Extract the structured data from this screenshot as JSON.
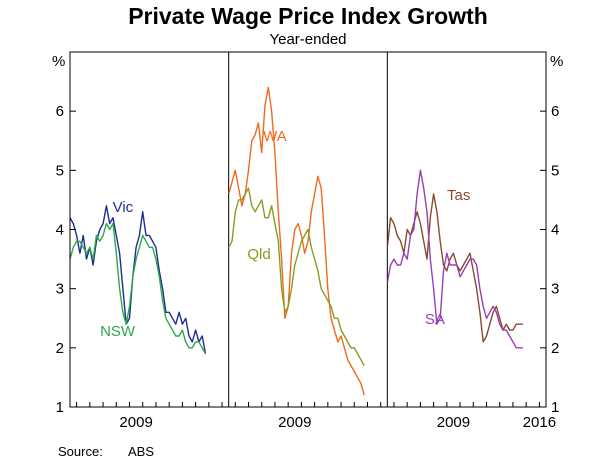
{
  "chart_data": {
    "type": "line",
    "title": "Private Wage Price Index Growth",
    "subtitle": "Year-ended",
    "ylabel_left": "%",
    "ylabel_right": "%",
    "ylim": [
      1,
      7
    ],
    "yticks": [
      1,
      2,
      3,
      4,
      5,
      6
    ],
    "xlim": [
      2004.5,
      2016.5
    ],
    "xticks": [
      {
        "value": 2009.5,
        "label": "2009"
      },
      {
        "value": 2016,
        "label": "2016"
      }
    ],
    "source_label": "Source:",
    "source_value": "ABS",
    "panels": [
      {
        "name": "panel-1",
        "series": [
          {
            "name": "Vic",
            "color": "#1f2d8f",
            "x_start": 2004.5,
            "step": 0.25,
            "values": [
              4.2,
              4.1,
              3.9,
              3.6,
              3.9,
              3.5,
              3.7,
              3.4,
              3.8,
              4.0,
              4.1,
              4.4,
              4.1,
              4.2,
              3.9,
              3.6,
              3.0,
              2.4,
              2.5,
              3.2,
              3.7,
              3.9,
              4.3,
              3.9,
              3.9,
              3.8,
              3.7,
              3.3,
              3.0,
              2.6,
              2.6,
              2.5,
              2.4,
              2.6,
              2.4,
              2.5,
              2.2,
              2.1,
              2.3,
              2.1,
              2.2,
              1.9
            ]
          },
          {
            "name": "NSW",
            "color": "#2fa84a",
            "x_start": 2004.5,
            "step": 0.25,
            "values": [
              3.5,
              3.7,
              3.8,
              3.8,
              3.7,
              3.6,
              3.7,
              3.5,
              3.9,
              3.8,
              3.9,
              4.1,
              4.0,
              4.1,
              3.6,
              3.0,
              2.6,
              2.4,
              2.7,
              3.2,
              3.5,
              3.7,
              3.9,
              3.8,
              3.7,
              3.7,
              3.5,
              3.2,
              2.8,
              2.5,
              2.4,
              2.3,
              2.2,
              2.2,
              2.3,
              2.1,
              2.0,
              2.0,
              2.1,
              2.1,
              2.0,
              1.9
            ]
          }
        ],
        "labels": [
          {
            "text": "Vic",
            "series": "Vic",
            "x": 2008.5,
            "y": 4.3
          },
          {
            "text": "NSW",
            "series": "NSW",
            "x": 2008.1,
            "y": 2.2
          }
        ]
      },
      {
        "name": "panel-2",
        "series": [
          {
            "name": "WA",
            "color": "#f06a1d",
            "x_start": 2004.5,
            "step": 0.25,
            "values": [
              4.6,
              4.8,
              5.0,
              4.7,
              4.4,
              4.6,
              5.0,
              5.5,
              5.6,
              5.8,
              5.3,
              6.1,
              6.4,
              6.0,
              5.3,
              4.3,
              3.5,
              2.5,
              2.7,
              3.6,
              4.0,
              4.1,
              3.9,
              3.6,
              3.8,
              4.3,
              4.6,
              4.9,
              4.7,
              3.9,
              3.0,
              2.5,
              2.3,
              2.1,
              2.2,
              2.0,
              1.8,
              1.7,
              1.6,
              1.5,
              1.4,
              1.2
            ]
          },
          {
            "name": "Qld",
            "color": "#8c9b1f",
            "x_start": 2004.5,
            "step": 0.25,
            "values": [
              3.7,
              3.8,
              4.3,
              4.5,
              4.5,
              4.6,
              4.7,
              4.4,
              4.3,
              4.4,
              4.5,
              4.2,
              4.2,
              4.4,
              4.1,
              3.8,
              3.0,
              2.6,
              2.7,
              3.0,
              3.4,
              3.6,
              3.8,
              3.9,
              4.0,
              3.7,
              3.5,
              3.3,
              3.0,
              2.9,
              2.8,
              2.7,
              2.5,
              2.5,
              2.3,
              2.2,
              2.1,
              2.0,
              2.0,
              1.9,
              1.8,
              1.7
            ]
          }
        ],
        "labels": [
          {
            "text": "WA",
            "series": "WA",
            "x": 2008.0,
            "y": 5.5
          },
          {
            "text": "Qld",
            "series": "Qld",
            "x": 2006.8,
            "y": 3.5
          }
        ]
      },
      {
        "name": "panel-3",
        "series": [
          {
            "name": "Tas",
            "color": "#8b4a2b",
            "x_start": 2004.5,
            "step": 0.25,
            "values": [
              3.7,
              4.2,
              4.1,
              3.9,
              3.8,
              3.6,
              4.0,
              3.9,
              4.1,
              4.3,
              4.1,
              3.8,
              3.5,
              4.2,
              4.6,
              4.3,
              3.8,
              3.4,
              3.3,
              3.5,
              3.6,
              3.4,
              3.3,
              3.4,
              3.5,
              3.6,
              3.3,
              3.0,
              2.6,
              2.1,
              2.2,
              2.4,
              2.6,
              2.7,
              2.5,
              2.3,
              2.4,
              2.3,
              2.3,
              2.4,
              2.4,
              2.4
            ]
          },
          {
            "name": "SA",
            "color": "#9a3db8",
            "x_start": 2004.5,
            "step": 0.25,
            "values": [
              3.1,
              3.4,
              3.5,
              3.4,
              3.4,
              3.6,
              3.5,
              3.9,
              4.0,
              4.6,
              5.0,
              4.7,
              4.3,
              3.5,
              3.0,
              2.4,
              2.5,
              3.3,
              3.6,
              3.4,
              3.4,
              3.4,
              3.2,
              3.3,
              3.4,
              3.5,
              3.5,
              3.4,
              3.0,
              2.7,
              2.5,
              2.6,
              2.7,
              2.6,
              2.4,
              2.3,
              2.3,
              2.2,
              2.1,
              2.0,
              2.0,
              2.0
            ]
          }
        ],
        "labels": [
          {
            "text": "Tas",
            "series": "Tas",
            "x": 2009.9,
            "y": 4.5
          },
          {
            "text": "SA",
            "series": "SA",
            "x": 2008.1,
            "y": 2.4
          }
        ]
      }
    ]
  }
}
